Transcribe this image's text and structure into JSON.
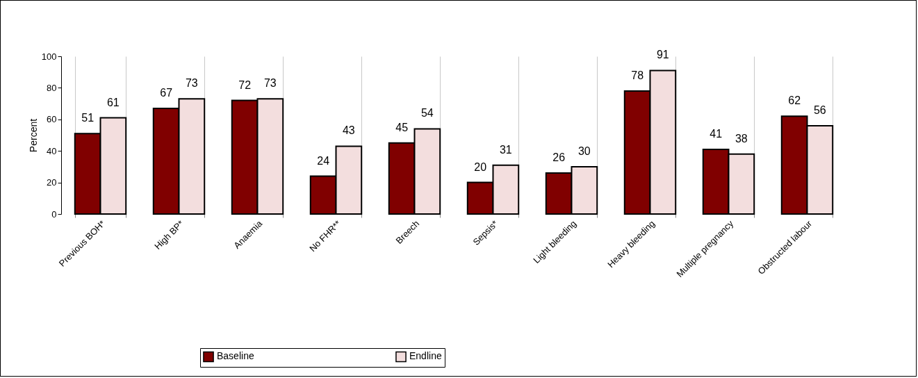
{
  "chart_data": {
    "type": "bar",
    "ylabel": "Percent",
    "categories": [
      "Previous BOH*",
      "High BP*",
      "Anaemia",
      "No FHR**",
      "Breech",
      "Sepsis*",
      "Light bleeding",
      "Heavy bleeding",
      "Multiple pregnancy",
      "Obstructed labour"
    ],
    "series": [
      {
        "name": "Baseline",
        "color": "#800000",
        "values": [
          51,
          67,
          72,
          24,
          45,
          20,
          26,
          78,
          41,
          62
        ]
      },
      {
        "name": "Endline",
        "color": "#f3dede",
        "values": [
          61,
          73,
          73,
          43,
          54,
          31,
          30,
          91,
          38,
          56
        ]
      }
    ],
    "ylim": [
      0,
      100
    ],
    "yticks": [
      0,
      20,
      40,
      60,
      80,
      100
    ],
    "grid": "x",
    "legend": "bottom",
    "data_labels": true
  }
}
